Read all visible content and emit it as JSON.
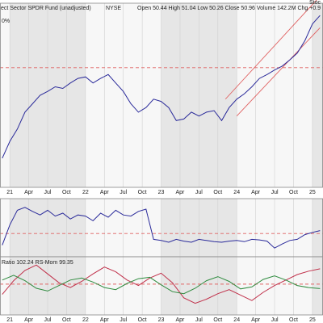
{
  "chart_data": [
    {
      "type": "line",
      "title": "ect Sector SPDR Fund (unadjusted)",
      "exchange": "NYSE",
      "quote": "Open 50.44 High 51.04 Low 50.26 Close 50.96 Volume 142.2M Chg +0.9",
      "corner_label": "0%",
      "watermark": "Stoc",
      "x": [
        2020.9,
        2021.0,
        2021.1,
        2021.2,
        2021.3,
        2021.4,
        2021.5,
        2021.6,
        2021.7,
        2021.8,
        2021.9,
        2022.0,
        2022.1,
        2022.2,
        2022.3,
        2022.4,
        2022.5,
        2022.6,
        2022.7,
        2022.8,
        2022.9,
        2023.0,
        2023.1,
        2023.2,
        2023.3,
        2023.4,
        2023.5,
        2023.6,
        2023.7,
        2023.8,
        2023.9,
        2024.0,
        2024.1,
        2024.2,
        2024.3,
        2024.4,
        2024.5,
        2024.6,
        2024.7,
        2024.8,
        2024.9,
        2025.0,
        2025.1
      ],
      "series": [
        {
          "name": "Price",
          "color": "#2a2a9a",
          "values": [
            31.8,
            34.0,
            35.6,
            37.8,
            38.9,
            40.0,
            40.5,
            41.1,
            40.9,
            41.6,
            42.2,
            42.4,
            41.6,
            42.2,
            42.7,
            41.6,
            40.5,
            38.9,
            37.8,
            38.4,
            39.5,
            39.2,
            38.4,
            36.7,
            36.9,
            37.8,
            37.3,
            37.8,
            38.0,
            36.7,
            38.4,
            39.5,
            40.2,
            41.1,
            42.2,
            42.7,
            43.3,
            43.8,
            44.6,
            45.5,
            47.1,
            49.3,
            50.4
          ]
        }
      ],
      "reference_lines": [
        43.6
      ],
      "trend_lines": [
        {
          "x": [
            2023.85,
            2025.1
          ],
          "y": [
            39.5,
            52.9
          ]
        },
        {
          "x": [
            2024.0,
            2025.1
          ],
          "y": [
            37.3,
            48.8
          ]
        }
      ],
      "xlim": [
        2020.87,
        2025.14
      ],
      "ylim": [
        28,
        52
      ],
      "xticks": [
        {
          "value": 2021,
          "label": "21"
        },
        {
          "value": 2021.25,
          "label": "Apr"
        },
        {
          "value": 2021.5,
          "label": "Jul"
        },
        {
          "value": 2021.75,
          "label": "Oct"
        },
        {
          "value": 2022,
          "label": "22"
        },
        {
          "value": 2022.25,
          "label": "Apr"
        },
        {
          "value": 2022.5,
          "label": "Jul"
        },
        {
          "value": 2022.75,
          "label": "Oct"
        },
        {
          "value": 2023,
          "label": "23"
        },
        {
          "value": 2023.25,
          "label": "Apr"
        },
        {
          "value": 2023.5,
          "label": "Jul"
        },
        {
          "value": 2023.75,
          "label": "Oct"
        },
        {
          "value": 2024,
          "label": "24"
        },
        {
          "value": 2024.25,
          "label": "Apr"
        },
        {
          "value": 2024.5,
          "label": "Jul"
        },
        {
          "value": 2024.75,
          "label": "Oct"
        },
        {
          "value": 2025,
          "label": "25"
        }
      ]
    },
    {
      "type": "line",
      "x": [
        2020.9,
        2021.0,
        2021.1,
        2021.2,
        2021.3,
        2021.4,
        2021.5,
        2021.6,
        2021.7,
        2021.8,
        2021.9,
        2022.0,
        2022.1,
        2022.2,
        2022.3,
        2022.4,
        2022.5,
        2022.6,
        2022.7,
        2022.8,
        2022.9,
        2023.0,
        2023.1,
        2023.2,
        2023.3,
        2023.4,
        2023.5,
        2023.6,
        2023.7,
        2023.8,
        2023.9,
        2024.0,
        2024.1,
        2024.2,
        2024.3,
        2024.4,
        2024.5,
        2024.6,
        2024.7,
        2024.8,
        2024.9,
        2025.0,
        2025.1
      ],
      "series": [
        {
          "name": "Relative Strength",
          "color": "#2a2a9a",
          "values": [
            20,
            55,
            80,
            85,
            78,
            72,
            80,
            70,
            75,
            65,
            72,
            70,
            62,
            75,
            68,
            80,
            72,
            70,
            78,
            82,
            30,
            28,
            25,
            30,
            27,
            25,
            30,
            28,
            26,
            25,
            27,
            28,
            26,
            30,
            29,
            27,
            15,
            22,
            28,
            30,
            38,
            42,
            45
          ]
        }
      ],
      "reference_lines": [
        40
      ],
      "xlim": [
        2020.87,
        2025.14
      ],
      "ylim": [
        0,
        100
      ]
    },
    {
      "type": "line",
      "legend_text": "Ratio 102.24 RS-Mom 99.35",
      "x": [
        2020.9,
        2021.05,
        2021.2,
        2021.35,
        2021.5,
        2021.65,
        2021.8,
        2021.95,
        2022.1,
        2022.25,
        2022.4,
        2022.55,
        2022.7,
        2022.85,
        2023.0,
        2023.15,
        2023.3,
        2023.45,
        2023.6,
        2023.75,
        2023.9,
        2024.05,
        2024.2,
        2024.35,
        2024.5,
        2024.65,
        2024.8,
        2024.95,
        2025.1
      ],
      "series": [
        {
          "name": "Ratio",
          "color": "#c0304a",
          "values": [
            98.5,
            100.5,
            102.0,
            102.8,
            101.5,
            100.2,
            99.5,
            100.4,
            101.5,
            102.5,
            101.8,
            100.6,
            99.8,
            100.9,
            101.6,
            100.2,
            98.0,
            97.2,
            97.8,
            98.6,
            99.2,
            98.4,
            97.6,
            98.8,
            99.8,
            100.6,
            101.4,
            101.9,
            102.24
          ]
        },
        {
          "name": "RS-Mom",
          "color": "#2e8b3e",
          "values": [
            100.6,
            101.3,
            100.5,
            99.4,
            99.0,
            99.8,
            100.6,
            100.9,
            100.3,
            99.5,
            99.2,
            100.1,
            100.8,
            101.0,
            99.9,
            98.9,
            98.6,
            99.4,
            100.5,
            101.1,
            100.4,
            99.3,
            99.6,
            100.7,
            101.2,
            100.6,
            99.8,
            99.5,
            99.35
          ]
        }
      ],
      "reference_lines": [
        100
      ],
      "xlim": [
        2020.87,
        2025.14
      ],
      "ylim": [
        95.5,
        104
      ],
      "xticks": [
        {
          "value": 2021,
          "label": "21"
        },
        {
          "value": 2021.25,
          "label": "Apr"
        },
        {
          "value": 2021.5,
          "label": "Jul"
        },
        {
          "value": 2021.75,
          "label": "Oct"
        },
        {
          "value": 2022,
          "label": "22"
        },
        {
          "value": 2022.25,
          "label": "Apr"
        },
        {
          "value": 2022.5,
          "label": "Jul"
        },
        {
          "value": 2022.75,
          "label": "Oct"
        },
        {
          "value": 2023,
          "label": "23"
        },
        {
          "value": 2023.25,
          "label": "Apr"
        },
        {
          "value": 2023.5,
          "label": "Jul"
        },
        {
          "value": 2023.75,
          "label": "Oct"
        },
        {
          "value": 2024,
          "label": "24"
        },
        {
          "value": 2024.25,
          "label": "Apr"
        },
        {
          "value": 2024.5,
          "label": "Jul"
        },
        {
          "value": 2024.75,
          "label": "Oct"
        },
        {
          "value": 2025,
          "label": "25"
        }
      ]
    }
  ]
}
